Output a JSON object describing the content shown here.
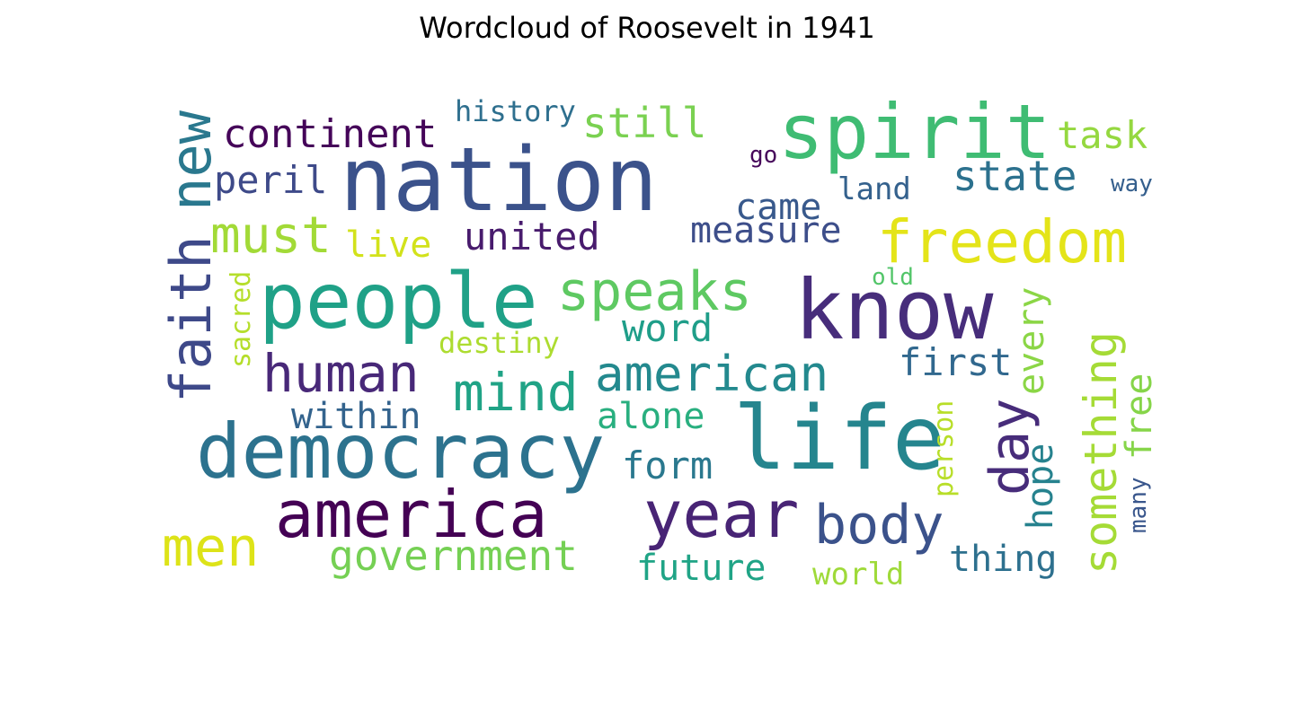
{
  "title": "Wordcloud of Roosevelt in 1941",
  "words": {
    "nation": {
      "text": "nation",
      "color": "#3b528b"
    },
    "spirit": {
      "text": "spirit",
      "color": "#3fbc73"
    },
    "people": {
      "text": "people",
      "color": "#1fa187"
    },
    "know": {
      "text": "know",
      "color": "#472d7b"
    },
    "life": {
      "text": "life",
      "color": "#25858e"
    },
    "democracy": {
      "text": "democracy",
      "color": "#2c728e"
    },
    "america": {
      "text": "america",
      "color": "#440154"
    },
    "year": {
      "text": "year",
      "color": "#482475"
    },
    "freedom": {
      "text": "freedom",
      "color": "#e4e419"
    },
    "faith": {
      "text": "faith",
      "color": "#3e4989"
    },
    "new": {
      "text": "new",
      "color": "#2a788e"
    },
    "body": {
      "text": "body",
      "color": "#3b528b"
    },
    "human": {
      "text": "human",
      "color": "#482878"
    },
    "mind": {
      "text": "mind",
      "color": "#20a386"
    },
    "american": {
      "text": "american",
      "color": "#23898e"
    },
    "speaks": {
      "text": "speaks",
      "color": "#5ec962"
    },
    "men": {
      "text": "men",
      "color": "#dde318"
    },
    "must": {
      "text": "must",
      "color": "#a2da37"
    },
    "day": {
      "text": "day",
      "color": "#472c7a"
    },
    "something": {
      "text": "something",
      "color": "#a5db36"
    },
    "government": {
      "text": "government",
      "color": "#75d054"
    },
    "continent": {
      "text": "continent",
      "color": "#450559"
    },
    "state": {
      "text": "state",
      "color": "#2c718e"
    },
    "still": {
      "text": "still",
      "color": "#7ad151"
    },
    "task": {
      "text": "task",
      "color": "#95d840"
    },
    "peril": {
      "text": "peril",
      "color": "#3e4a89"
    },
    "united": {
      "text": "united",
      "color": "#481b6d"
    },
    "live": {
      "text": "live",
      "color": "#d2e21b"
    },
    "measure": {
      "text": "measure",
      "color": "#3d4e8a"
    },
    "came": {
      "text": "came",
      "color": "#38598c"
    },
    "history": {
      "text": "history",
      "color": "#2e6f8e"
    },
    "land": {
      "text": "land",
      "color": "#34618d"
    },
    "go": {
      "text": "go",
      "color": "#46075a"
    },
    "way": {
      "text": "way",
      "color": "#355f8d"
    },
    "word": {
      "text": "word",
      "color": "#1f9e89"
    },
    "within": {
      "text": "within",
      "color": "#33638d"
    },
    "alone": {
      "text": "alone",
      "color": "#29af7f"
    },
    "form": {
      "text": "form",
      "color": "#2a788e"
    },
    "first": {
      "text": "first",
      "color": "#31688e"
    },
    "every": {
      "text": "every",
      "color": "#8bd646"
    },
    "hope": {
      "text": "hope",
      "color": "#26828e"
    },
    "free": {
      "text": "free",
      "color": "#86d549"
    },
    "many": {
      "text": "many",
      "color": "#39568c"
    },
    "person": {
      "text": "person",
      "color": "#b8de29"
    },
    "old": {
      "text": "old",
      "color": "#52c569"
    },
    "destiny": {
      "text": "destiny",
      "color": "#addc30"
    },
    "sacred": {
      "text": "sacred",
      "color": "#b5de2b"
    },
    "thing": {
      "text": "thing",
      "color": "#2d708e"
    },
    "future": {
      "text": "future",
      "color": "#20a486"
    },
    "world": {
      "text": "world",
      "color": "#9fda3a"
    }
  }
}
